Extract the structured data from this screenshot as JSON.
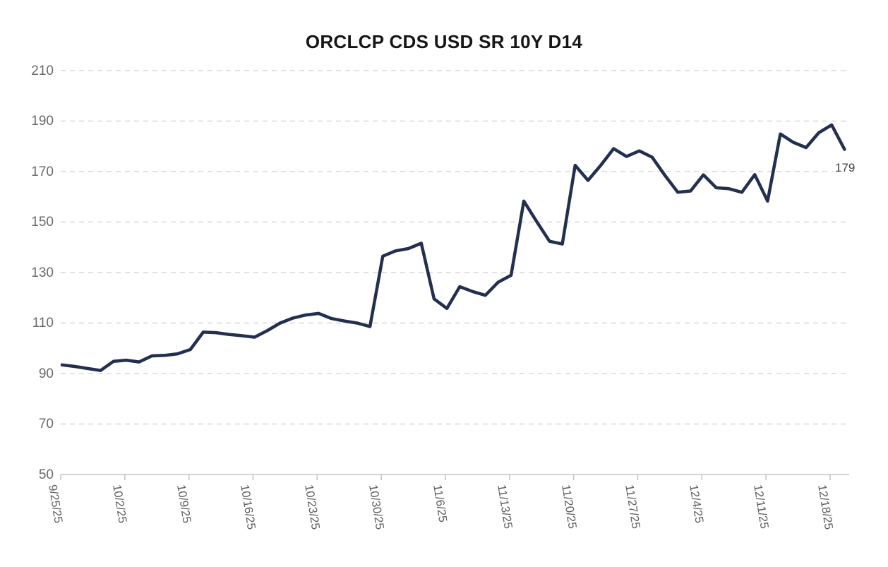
{
  "chart_data": {
    "type": "line",
    "title": "ORCLCP CDS USD SR 10Y D14",
    "xlabel": "",
    "ylabel": "",
    "ylim": [
      50,
      210
    ],
    "y_ticks": [
      50,
      70,
      90,
      110,
      130,
      150,
      170,
      190,
      210
    ],
    "x_tick_labels": [
      "9/25/25",
      "10/2/25",
      "10/9/25",
      "10/16/25",
      "10/23/25",
      "10/30/25",
      "11/6/25",
      "11/13/25",
      "11/20/25",
      "11/27/25",
      "12/4/25",
      "12/11/25",
      "12/18/25"
    ],
    "values": [
      93.4,
      92.8,
      92.0,
      91.2,
      94.8,
      95.3,
      94.6,
      97.0,
      97.2,
      97.8,
      99.5,
      106.4,
      106.2,
      105.5,
      105.0,
      104.4,
      107.0,
      110.0,
      112.0,
      113.2,
      113.8,
      111.8,
      110.8,
      110.0,
      108.6,
      136.5,
      138.6,
      139.5,
      141.6,
      119.6,
      115.8,
      124.4,
      122.5,
      121.0,
      126.2,
      128.9,
      158.3,
      150.2,
      142.4,
      141.3,
      172.5,
      166.5,
      172.5,
      179.1,
      176.0,
      178.2,
      175.7,
      168.5,
      161.8,
      162.3,
      168.7,
      163.6,
      163.2,
      161.8,
      168.8,
      158.3,
      184.9,
      181.6,
      179.5,
      185.4,
      188.5,
      178.8
    ],
    "last_value_label": "179",
    "grid": "horizontal-dashed",
    "legend": "none",
    "colors": {
      "line": "#232f4e",
      "grid": "#d8d8d8",
      "axis": "#c6c6c6",
      "title_text": "#161616",
      "tick_text": "#5e5e5e",
      "annotation_text": "#3f3f3f",
      "background": "#ffffff"
    }
  }
}
